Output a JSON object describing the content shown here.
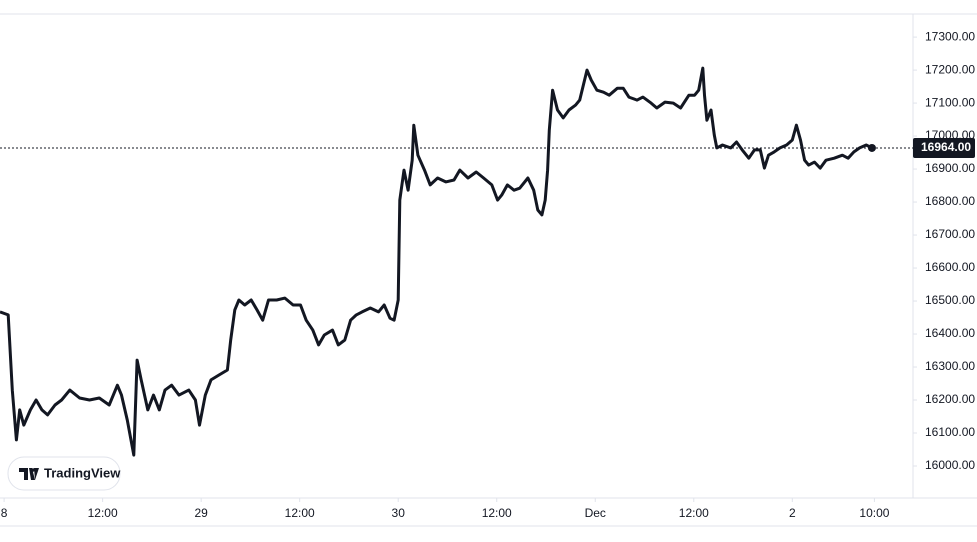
{
  "chart_data": {
    "type": "line",
    "watermark": "TradingView",
    "x": [
      -0.5,
      0.5,
      1.0,
      1.5,
      1.9,
      2.4,
      3.2,
      3.9,
      4.6,
      5.3,
      6.2,
      7.0,
      8.0,
      9.2,
      10.4,
      11.6,
      12.8,
      13.8,
      14.3,
      15.0,
      15.8,
      16.2,
      16.7,
      17.5,
      18.2,
      18.9,
      19.6,
      20.4,
      21.3,
      22.5,
      23.3,
      23.8,
      24.5,
      25.2,
      26.2,
      27.2,
      27.6,
      28.1,
      28.6,
      29.3,
      30.1,
      30.8,
      31.5,
      32.2,
      33.2,
      34.2,
      35.2,
      36.1,
      36.8,
      37.6,
      38.3,
      39.0,
      40.0,
      40.7,
      41.5,
      42.2,
      42.9,
      43.6,
      44.6,
      45.6,
      46.3,
      47.0,
      47.5,
      48.0,
      48.2,
      48.7,
      49.2,
      49.7,
      49.9,
      50.4,
      51.2,
      51.9,
      52.8,
      53.8,
      54.8,
      55.5,
      56.5,
      57.5,
      58.4,
      59.4,
      60.1,
      60.6,
      61.3,
      62.1,
      62.8,
      63.8,
      64.5,
      65.0,
      65.5,
      65.9,
      66.2,
      66.4,
      66.8,
      67.4,
      68.1,
      68.8,
      69.6,
      70.1,
      71.0,
      71.5,
      72.2,
      73.0,
      73.7,
      74.7,
      75.4,
      76.1,
      77.1,
      77.8,
      78.8,
      79.5,
      80.5,
      81.5,
      82.4,
      83.4,
      84.1,
      84.6,
      85.1,
      85.3,
      85.6,
      86.1,
      86.5,
      86.8,
      87.5,
      88.5,
      89.2,
      89.9,
      90.7,
      91.4,
      92.1,
      92.6,
      93.1,
      93.8,
      94.5,
      95.3,
      96.0,
      96.5,
      97.0,
      97.5,
      98.0,
      98.7,
      99.4,
      100.1,
      101.1,
      102.1,
      102.8,
      103.5,
      104.2,
      105.0,
      105.7
    ],
    "series": [
      {
        "color": "#131722",
        "values": [
          16467,
          16458,
          16230,
          16079,
          16170,
          16124,
          16170,
          16200,
          16170,
          16155,
          16185,
          16200,
          16230,
          16206,
          16200,
          16206,
          16185,
          16245,
          16215,
          16139,
          16033,
          16321,
          16261,
          16170,
          16215,
          16170,
          16230,
          16245,
          16215,
          16230,
          16200,
          16124,
          16215,
          16261,
          16276,
          16291,
          16382,
          16473,
          16503,
          16488,
          16503,
          16473,
          16442,
          16503,
          16503,
          16509,
          16488,
          16488,
          16442,
          16412,
          16367,
          16397,
          16412,
          16367,
          16382,
          16442,
          16458,
          16467,
          16479,
          16467,
          16488,
          16448,
          16442,
          16503,
          16806,
          16897,
          16836,
          16927,
          17033,
          16942,
          16897,
          16852,
          16873,
          16861,
          16867,
          16897,
          16873,
          16891,
          16873,
          16852,
          16806,
          16821,
          16852,
          16836,
          16842,
          16873,
          16836,
          16776,
          16761,
          16806,
          16897,
          17018,
          17139,
          17079,
          17055,
          17079,
          17094,
          17109,
          17200,
          17170,
          17139,
          17133,
          17124,
          17145,
          17145,
          17118,
          17109,
          17118,
          17100,
          17085,
          17103,
          17100,
          17085,
          17124,
          17124,
          17139,
          17206,
          17124,
          17048,
          17079,
          17003,
          16964,
          16973,
          16964,
          16982,
          16958,
          16933,
          16958,
          16958,
          16903,
          16942,
          16952,
          16964,
          16973,
          16988,
          17033,
          16988,
          16927,
          16912,
          16921,
          16903,
          16927,
          16933,
          16942,
          16933,
          16952,
          16964,
          16973,
          16964
        ]
      }
    ],
    "last_price": 16964,
    "last_price_label": "16964.00",
    "xlim": [
      -0.5,
      110.7
    ],
    "ylim": [
      15903,
      17370
    ],
    "xticks": [
      {
        "value": 0,
        "label": "8"
      },
      {
        "value": 12,
        "label": "12:00"
      },
      {
        "value": 24,
        "label": "29"
      },
      {
        "value": 36,
        "label": "12:00"
      },
      {
        "value": 48,
        "label": "30"
      },
      {
        "value": 60,
        "label": "12:00"
      },
      {
        "value": 72,
        "label": "Dec"
      },
      {
        "value": 84,
        "label": "12:00"
      },
      {
        "value": 96,
        "label": "2"
      },
      {
        "value": 106,
        "label": "10:00"
      }
    ],
    "yticks": [
      {
        "value": 16000,
        "label": "16000.00"
      },
      {
        "value": 16100,
        "label": "16100.00"
      },
      {
        "value": 16200,
        "label": "16200.00"
      },
      {
        "value": 16300,
        "label": "16300.00"
      },
      {
        "value": 16400,
        "label": "16400.00"
      },
      {
        "value": 16500,
        "label": "16500.00"
      },
      {
        "value": 16600,
        "label": "16600.00"
      },
      {
        "value": 16700,
        "label": "16700.00"
      },
      {
        "value": 16800,
        "label": "16800.00"
      },
      {
        "value": 16900,
        "label": "16900.00"
      },
      {
        "value": 17000,
        "label": "17000.00"
      },
      {
        "value": 17100,
        "label": "17100.00"
      },
      {
        "value": 17200,
        "label": "17200.00"
      },
      {
        "value": 17300,
        "label": "17300.00"
      }
    ]
  }
}
